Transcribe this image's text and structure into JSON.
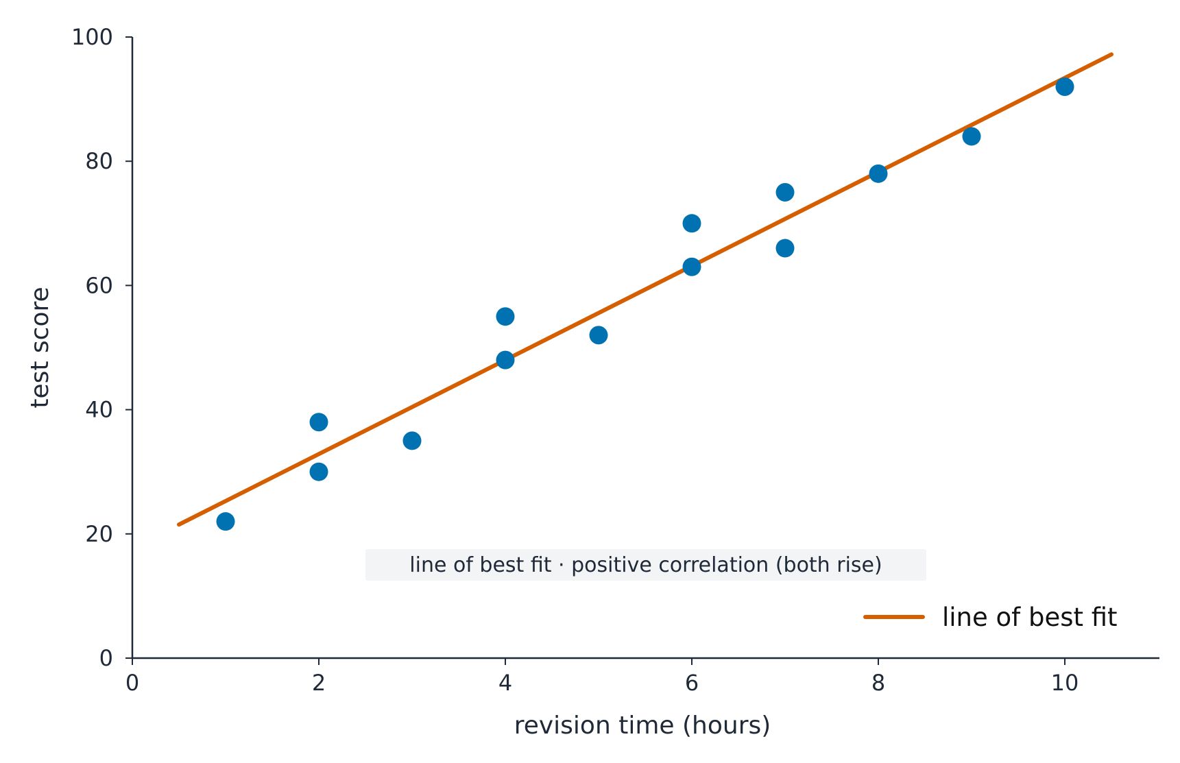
{
  "chart_data": {
    "type": "scatter",
    "xlabel": "revision time (hours)",
    "ylabel": "test score",
    "xlim": [
      0,
      11
    ],
    "ylim": [
      0,
      100
    ],
    "x_ticks": [
      0,
      2,
      4,
      6,
      8,
      10
    ],
    "y_ticks": [
      0,
      20,
      40,
      60,
      80,
      100
    ],
    "grid": false,
    "series": [
      {
        "type": "scatter",
        "points": [
          {
            "x": 1,
            "y": 22
          },
          {
            "x": 2,
            "y": 38
          },
          {
            "x": 2,
            "y": 30
          },
          {
            "x": 3,
            "y": 35
          },
          {
            "x": 4,
            "y": 55
          },
          {
            "x": 4,
            "y": 48
          },
          {
            "x": 5,
            "y": 52
          },
          {
            "x": 6,
            "y": 70
          },
          {
            "x": 6,
            "y": 63
          },
          {
            "x": 7,
            "y": 75
          },
          {
            "x": 7,
            "y": 66
          },
          {
            "x": 8,
            "y": 78
          },
          {
            "x": 9,
            "y": 84
          },
          {
            "x": 10,
            "y": 92
          }
        ],
        "color": "#0072b2"
      },
      {
        "type": "line",
        "name": "line of best fit",
        "points": [
          {
            "x": 0.5,
            "y": 21.5
          },
          {
            "x": 10.5,
            "y": 97.2
          }
        ],
        "color": "#d55e00"
      }
    ],
    "annotation": "line of best fit  ·  positive correlation (both rise)",
    "legend": {
      "position": "lower-right",
      "entries": [
        "line of best fit"
      ]
    },
    "colors": {
      "axis": "#1f2937",
      "points": "#0072b2",
      "fit_line": "#d55e00",
      "annotation_bg": "#f3f4f6"
    }
  }
}
